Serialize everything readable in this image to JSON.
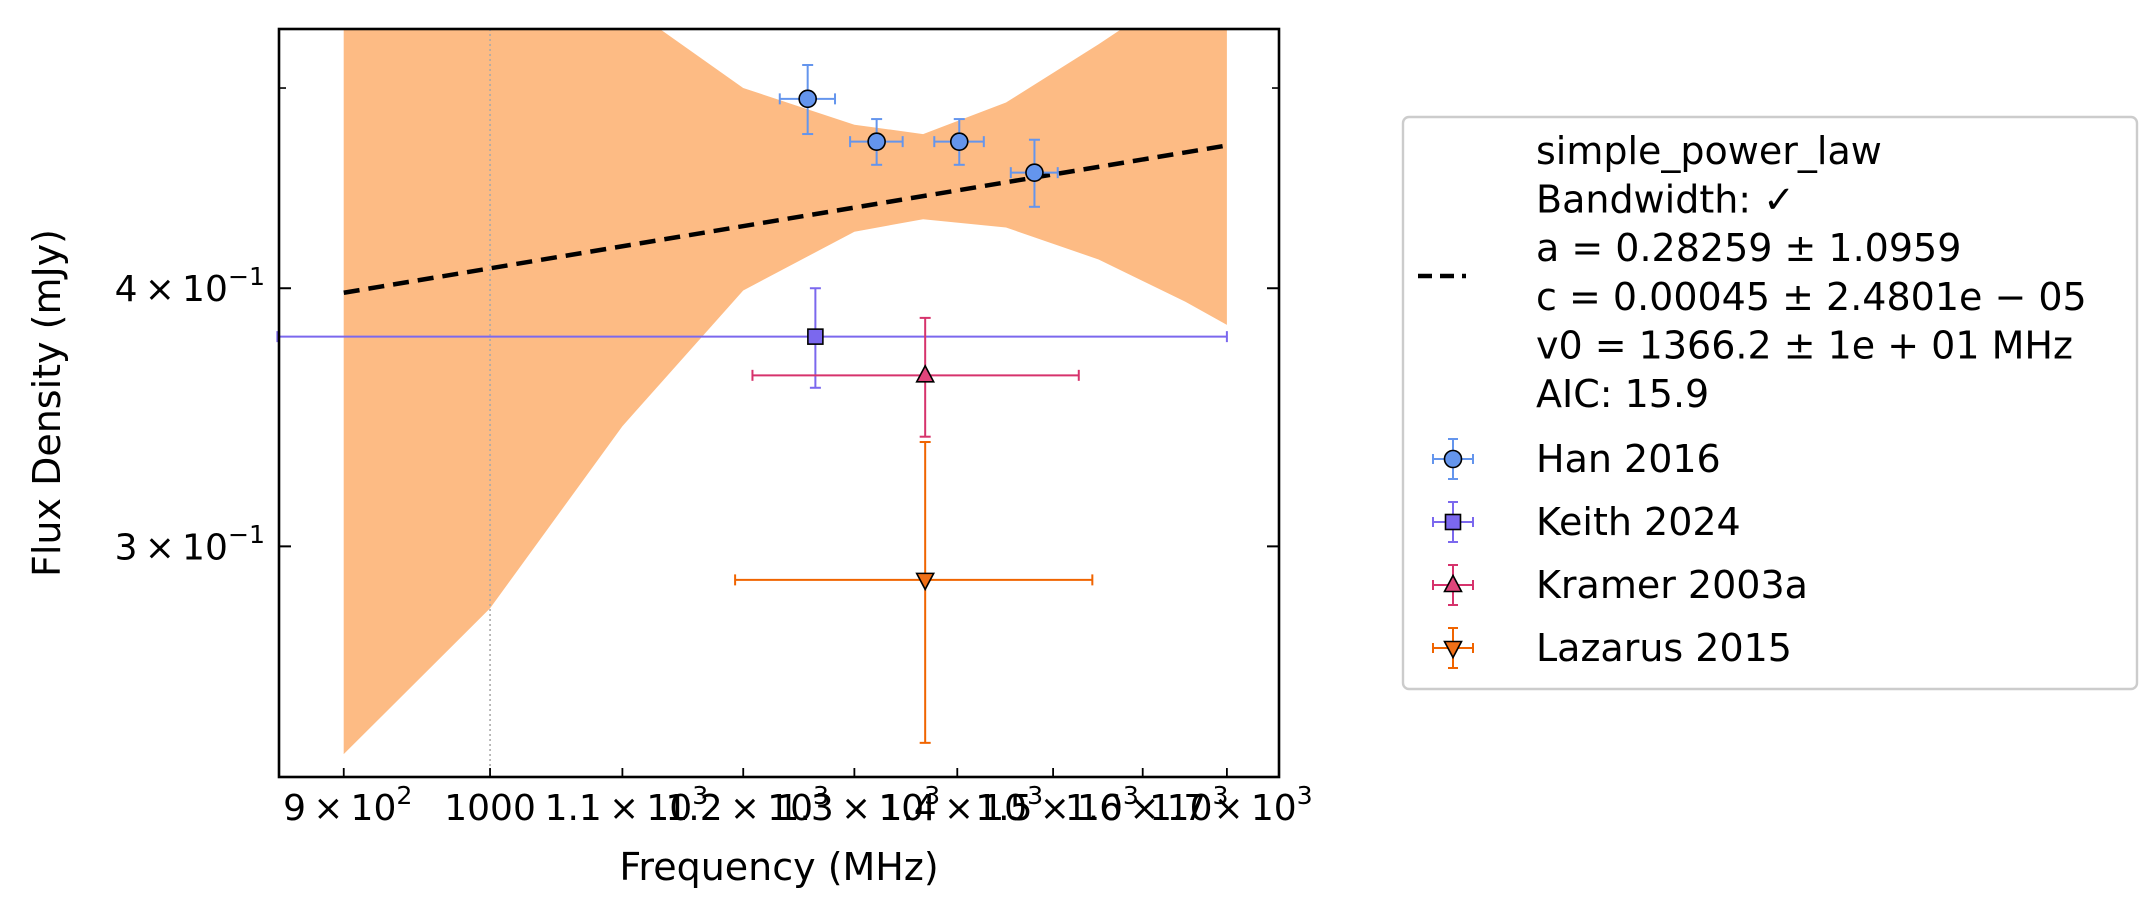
{
  "chart_data": {
    "type": "scatter",
    "xlabel": "Frequency (MHz)",
    "ylabel": "Flux Density (mJy)",
    "xscale": "log",
    "yscale": "log",
    "xlim": [
      859,
      1765
    ],
    "ylim": [
      0.232,
      0.534
    ],
    "x_ticks": [
      {
        "value": 900,
        "mantissa": "9",
        "exponent": "2",
        "plain": ""
      },
      {
        "value": 1000,
        "mantissa": "",
        "exponent": "",
        "plain": "1000"
      },
      {
        "value": 1100,
        "mantissa": "1.1",
        "exponent": "3",
        "plain": ""
      },
      {
        "value": 1200,
        "mantissa": "1.2",
        "exponent": "3",
        "plain": ""
      },
      {
        "value": 1300,
        "mantissa": "1.3",
        "exponent": "3",
        "plain": ""
      },
      {
        "value": 1400,
        "mantissa": "1.4",
        "exponent": "3",
        "plain": ""
      },
      {
        "value": 1500,
        "mantissa": "1.5",
        "exponent": "3",
        "plain": ""
      },
      {
        "value": 1600,
        "mantissa": "1.6",
        "exponent": "3",
        "plain": ""
      },
      {
        "value": 1700,
        "mantissa": "1.7",
        "exponent": "3",
        "plain": ""
      }
    ],
    "y_ticks": [
      {
        "value": 0.3,
        "mantissa": "3",
        "exponent": "−1"
      },
      {
        "value": 0.4,
        "mantissa": "4",
        "exponent": "−1"
      }
    ],
    "y_minor_ticks": [
      0.5
    ],
    "vline_x": 1000,
    "fit": {
      "name": "simple_power_law",
      "color": "#000000",
      "style": "dashed",
      "x": [
        900,
        1700
      ],
      "y": [
        0.398,
        0.469
      ],
      "band_color": "#fdbb84",
      "band": [
        {
          "x": 900,
          "lo": 0.238,
          "hi": 0.9
        },
        {
          "x": 1000,
          "lo": 0.28,
          "hi": 0.625
        },
        {
          "x": 1100,
          "lo": 0.343,
          "hi": 0.55
        },
        {
          "x": 1200,
          "lo": 0.399,
          "hi": 0.5
        },
        {
          "x": 1300,
          "lo": 0.426,
          "hi": 0.48
        },
        {
          "x": 1366,
          "lo": 0.432,
          "hi": 0.475
        },
        {
          "x": 1450,
          "lo": 0.428,
          "hi": 0.492
        },
        {
          "x": 1550,
          "lo": 0.413,
          "hi": 0.525
        },
        {
          "x": 1650,
          "lo": 0.394,
          "hi": 0.56
        },
        {
          "x": 1700,
          "lo": 0.384,
          "hi": 0.6
        }
      ]
    },
    "series": [
      {
        "name": "Han 2016",
        "marker": "circle",
        "color": "#6495ed",
        "ecolor": "#6495ed",
        "points": [
          {
            "x": 1257,
            "y": 0.494,
            "xerr": 25,
            "yerr": 0.019
          },
          {
            "x": 1321,
            "y": 0.471,
            "xerr": 25,
            "yerr": 0.012
          },
          {
            "x": 1402,
            "y": 0.471,
            "xerr": 25,
            "yerr": 0.012
          },
          {
            "x": 1480,
            "y": 0.455,
            "xerr": 25,
            "yerr": 0.017
          }
        ]
      },
      {
        "name": "Keith 2024",
        "marker": "square",
        "color": "#7b68ee",
        "ecolor": "#7b68ee",
        "points": [
          {
            "x": 1264,
            "y": 0.379,
            "xerr_lo": 406,
            "xerr_hi": 436,
            "yerr": 0.021
          }
        ]
      },
      {
        "name": "Kramer 2003a",
        "marker": "triangle-up",
        "color": "#e0457b",
        "ecolor": "#d6336c",
        "points": [
          {
            "x": 1368,
            "y": 0.363,
            "xerr": 160,
            "yerr": 0.024
          }
        ]
      },
      {
        "name": "Lazarus 2015",
        "marker": "triangle-down",
        "color": "#f07018",
        "ecolor": "#f06400",
        "points": [
          {
            "x": 1368,
            "y": 0.289,
            "xerr": 175,
            "yerr": 0.048
          }
        ]
      }
    ],
    "legend": {
      "placement": "outside-right",
      "fit_lines": [
        "simple_power_law",
        "Bandwidth: ✓",
        "a = 0.28259 ± 1.0959",
        "c = 0.00045 ± 2.4801e − 05",
        "v0 = 1366.2 ± 1e + 01 MHz",
        "AIC: 15.9"
      ]
    }
  }
}
